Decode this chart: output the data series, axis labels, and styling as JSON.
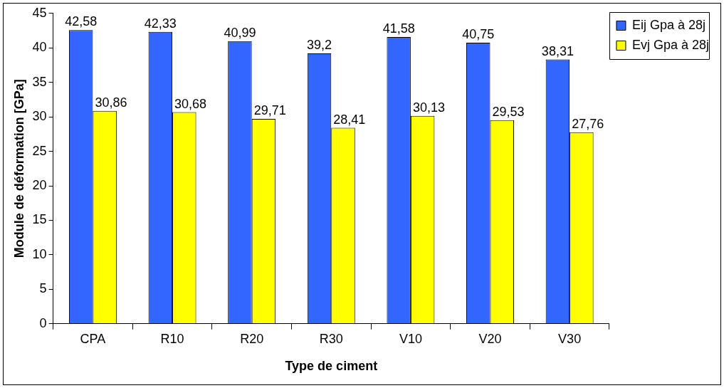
{
  "chart_data": {
    "type": "bar",
    "xlabel": "Type de ciment",
    "ylabel": "Module de déformation [GPa]",
    "categories": [
      "CPA",
      "R10",
      "R20",
      "R30",
      "V10",
      "V20",
      "V30"
    ],
    "series": [
      {
        "name": "Eij Gpa à 28j",
        "color": "#3366ff",
        "values": [
          42.58,
          42.33,
          40.99,
          39.2,
          41.58,
          40.75,
          38.31
        ],
        "value_labels": [
          "42,58",
          "42,33",
          "40,99",
          "39,2",
          "41,58",
          "40,75",
          "38,31"
        ]
      },
      {
        "name": "Evj Gpa à 28j",
        "color": "#ffff00",
        "values": [
          30.86,
          30.68,
          29.71,
          28.41,
          30.13,
          29.53,
          27.76
        ],
        "value_labels": [
          "30,86",
          "30,68",
          "29,71",
          "28,41",
          "30,13",
          "29,53",
          "27,76"
        ]
      }
    ],
    "ylim": [
      0,
      45
    ],
    "yticks": [
      0,
      5,
      10,
      15,
      20,
      25,
      30,
      35,
      40,
      45
    ],
    "legend": "top right"
  }
}
